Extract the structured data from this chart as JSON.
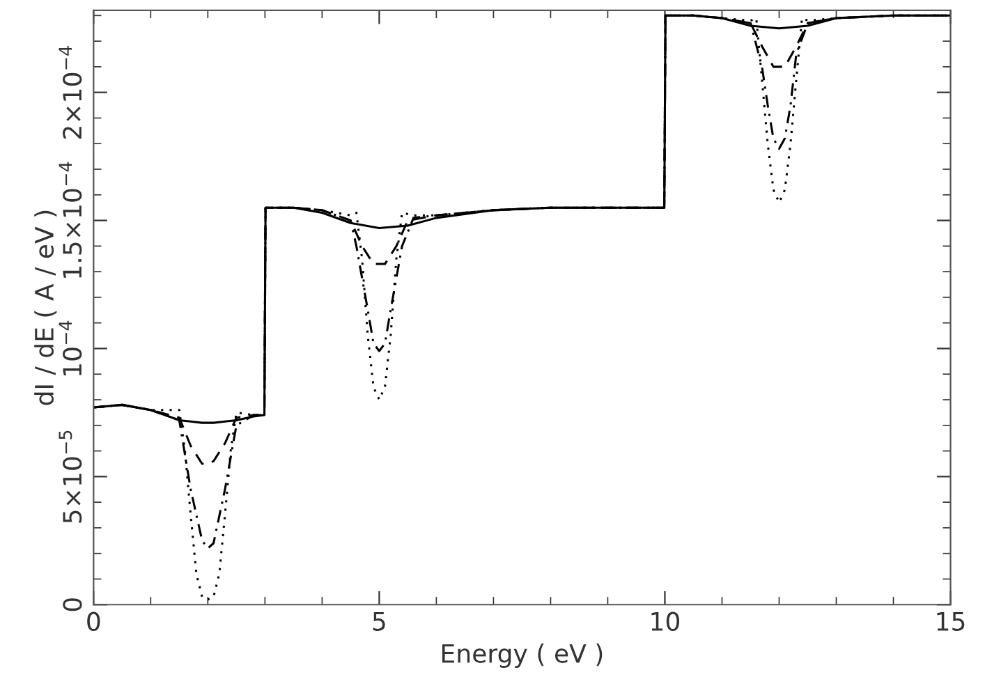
{
  "chart_data": {
    "type": "line",
    "xlabel": "Energy ( eV )",
    "ylabel": "dI / dE ( A / eV )",
    "xlim": [
      0,
      15
    ],
    "xticks": [
      0,
      5,
      10,
      15
    ],
    "ylim": [
      0,
      0.000232
    ],
    "yticks": [
      0,
      {
        "value": 5e-05,
        "label": "5×10$^{−5}$"
      },
      {
        "value": 0.0001,
        "label": "10$^{−4}$"
      },
      {
        "value": 0.00015,
        "label": "1.5×10$^{−4}$"
      },
      {
        "value": 0.0002,
        "label": "2×10$^{−4}$"
      }
    ],
    "grid": false,
    "legend": false,
    "marker": "none",
    "series": [
      {
        "color": "#000000",
        "line_style": "solid",
        "x": [
          0,
          0.5,
          1,
          1.5,
          1.7,
          1.9,
          2,
          2.1,
          2.3,
          2.5,
          2.8,
          2.99,
          3.01,
          3.5,
          4,
          4.5,
          5,
          5.5,
          6,
          7,
          8,
          9,
          9.99,
          10.01,
          10.5,
          11,
          11.5,
          12,
          12.5,
          13,
          14,
          15
        ],
        "values": [
          7.7e-05,
          7.8e-05,
          7.6e-05,
          7.2e-05,
          7.15e-05,
          7.1e-05,
          7.1e-05,
          7.1e-05,
          7.15e-05,
          7.2e-05,
          7.35e-05,
          7.4e-05,
          0.000155,
          0.000155,
          0.000153,
          0.000149,
          0.000147,
          0.000148,
          0.000151,
          0.000154,
          0.000155,
          0.000155,
          0.000155,
          0.00023,
          0.00023,
          0.000229,
          0.000226,
          0.000225,
          0.000226,
          0.000229,
          0.00023,
          0.00023
        ]
      },
      {
        "color": "#000000",
        "line_style": "dashed",
        "x": [
          0,
          0.5,
          1,
          1.5,
          1.7,
          1.9,
          2,
          2.1,
          2.3,
          2.5,
          2.8,
          2.99,
          3.01,
          3.5,
          4,
          4.5,
          4.7,
          4.9,
          5.1,
          5.3,
          5.5,
          6,
          7,
          8,
          9,
          9.99,
          10.01,
          10.5,
          11,
          11.5,
          11.7,
          11.9,
          12.1,
          12.3,
          12.5,
          13,
          14,
          15
        ],
        "values": [
          7.7e-05,
          7.8e-05,
          7.6e-05,
          7.3e-05,
          6.2e-05,
          5.5e-05,
          5.5e-05,
          5.6e-05,
          6.3e-05,
          7.3e-05,
          7.4e-05,
          7.4e-05,
          0.000155,
          0.000155,
          0.000154,
          0.00015,
          0.00014,
          0.000133,
          0.000133,
          0.00014,
          0.00015,
          0.000152,
          0.000154,
          0.000155,
          0.000155,
          0.000155,
          0.00023,
          0.00023,
          0.000229,
          0.000227,
          0.000218,
          0.00021,
          0.00021,
          0.000218,
          0.000227,
          0.000229,
          0.00023,
          0.00023
        ]
      },
      {
        "color": "#000000",
        "line_style": "dashdot",
        "x": [
          0,
          0.5,
          1,
          1.5,
          1.7,
          1.9,
          2,
          2.1,
          2.3,
          2.5,
          2.8,
          2.99,
          3.01,
          3.5,
          4,
          4.5,
          4.6,
          4.8,
          4.9,
          5,
          5.1,
          5.2,
          5.4,
          5.6,
          6,
          7,
          8,
          9,
          9.99,
          10.01,
          10.5,
          11,
          11.5,
          11.7,
          11.8,
          11.9,
          12,
          12.1,
          12.2,
          12.3,
          12.5,
          13,
          14,
          15
        ],
        "values": [
          7.7e-05,
          7.8e-05,
          7.6e-05,
          7.2e-05,
          4.5e-05,
          2.5e-05,
          2.2e-05,
          2.4e-05,
          4.5e-05,
          7e-05,
          7.4e-05,
          7.4e-05,
          0.000155,
          0.000155,
          0.000154,
          0.00015,
          0.00014,
          0.000115,
          0.000102,
          9.9e-05,
          0.000102,
          0.000115,
          0.00014,
          0.000151,
          0.000152,
          0.000154,
          0.000155,
          0.000155,
          0.000155,
          0.00023,
          0.00023,
          0.000229,
          0.000227,
          0.00021,
          0.000195,
          0.000182,
          0.000178,
          0.000182,
          0.000195,
          0.000215,
          0.000227,
          0.000229,
          0.00023,
          0.00023
        ]
      },
      {
        "color": "#000000",
        "line_style": "dotted",
        "x": [
          0,
          0.5,
          1,
          1.5,
          1.6,
          1.7,
          1.8,
          1.9,
          2,
          2.1,
          2.2,
          2.3,
          2.4,
          2.5,
          2.8,
          2.99,
          3.01,
          3.5,
          4,
          4.5,
          4.6,
          4.7,
          4.8,
          4.9,
          5,
          5.1,
          5.2,
          5.3,
          5.4,
          5.6,
          6,
          7,
          8,
          9,
          9.99,
          10.01,
          10.5,
          11,
          11.5,
          11.6,
          11.7,
          11.8,
          11.9,
          12,
          12.1,
          12.2,
          12.3,
          12.4,
          12.5,
          13,
          14,
          15
        ],
        "values": [
          7.7e-05,
          7.8e-05,
          7.6e-05,
          7.6e-05,
          6e-05,
          3.5e-05,
          1.2e-05,
          3e-06,
          2e-06,
          3e-06,
          1.2e-05,
          3.5e-05,
          6e-05,
          7.5e-05,
          7.4e-05,
          7.4e-05,
          0.000155,
          0.000155,
          0.000154,
          0.000152,
          0.000153,
          0.000135,
          0.000105,
          8.5e-05,
          8e-05,
          8.5e-05,
          0.000105,
          0.000135,
          0.000153,
          0.000152,
          0.000152,
          0.000154,
          0.000155,
          0.000155,
          0.000155,
          0.00023,
          0.00023,
          0.000229,
          0.000228,
          0.000229,
          0.000205,
          0.00018,
          0.000162,
          0.000157,
          0.000162,
          0.00018,
          0.000205,
          0.000229,
          0.000228,
          0.000229,
          0.00023,
          0.00023
        ]
      }
    ]
  }
}
